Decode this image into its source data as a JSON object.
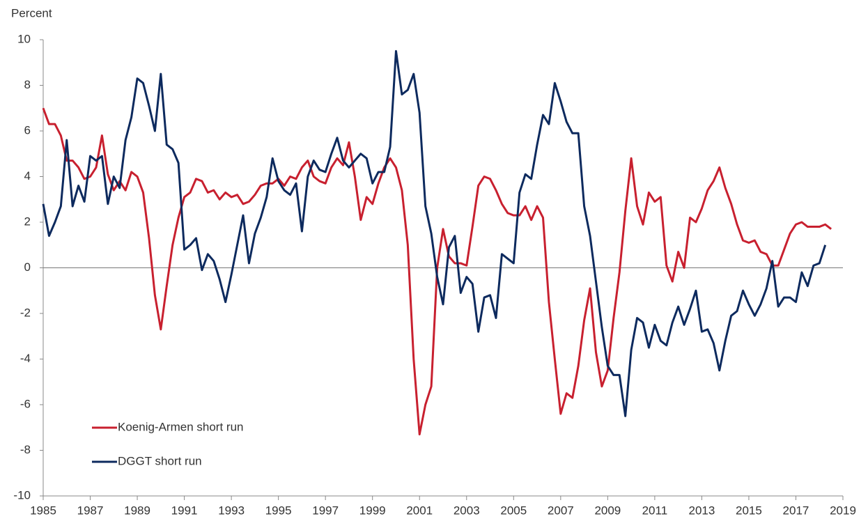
{
  "chart_data": {
    "type": "line",
    "y_label": "Percent",
    "x": [
      1985,
      1985.25,
      1985.5,
      1985.75,
      1986,
      1986.25,
      1986.5,
      1986.75,
      1987,
      1987.25,
      1987.5,
      1987.75,
      1988,
      1988.25,
      1988.5,
      1988.75,
      1989,
      1989.25,
      1989.5,
      1989.75,
      1990,
      1990.25,
      1990.5,
      1990.75,
      1991,
      1991.25,
      1991.5,
      1991.75,
      1992,
      1992.25,
      1992.5,
      1992.75,
      1993,
      1993.25,
      1993.5,
      1993.75,
      1994,
      1994.25,
      1994.5,
      1994.75,
      1995,
      1995.25,
      1995.5,
      1995.75,
      1996,
      1996.25,
      1996.5,
      1996.75,
      1997,
      1997.25,
      1997.5,
      1997.75,
      1998,
      1998.25,
      1998.5,
      1998.75,
      1999,
      1999.25,
      1999.5,
      1999.75,
      2000,
      2000.25,
      2000.5,
      2000.75,
      2001,
      2001.25,
      2001.5,
      2001.75,
      2002,
      2002.25,
      2002.5,
      2002.75,
      2003,
      2003.25,
      2003.5,
      2003.75,
      2004,
      2004.25,
      2004.5,
      2004.75,
      2005,
      2005.25,
      2005.5,
      2005.75,
      2006,
      2006.25,
      2006.5,
      2006.75,
      2007,
      2007.25,
      2007.5,
      2007.75,
      2008,
      2008.25,
      2008.5,
      2008.75,
      2009,
      2009.25,
      2009.5,
      2009.75,
      2010,
      2010.25,
      2010.5,
      2010.75,
      2011,
      2011.25,
      2011.5,
      2011.75,
      2012,
      2012.25,
      2012.5,
      2012.75,
      2013,
      2013.25,
      2013.5,
      2013.75,
      2014,
      2014.25,
      2014.5,
      2014.75,
      2015,
      2015.25,
      2015.5,
      2015.75,
      2016,
      2016.25,
      2016.5,
      2016.75,
      2017,
      2017.25,
      2017.5,
      2017.75,
      2018,
      2018.25,
      2018.5
    ],
    "series": [
      {
        "name": "Koenig-Armen short run",
        "color": "#c8202f",
        "values": [
          7.0,
          6.3,
          6.3,
          5.8,
          4.7,
          4.7,
          4.4,
          3.9,
          4.0,
          4.4,
          5.8,
          4.1,
          3.4,
          3.8,
          3.4,
          4.2,
          4.0,
          3.3,
          1.3,
          -1.2,
          -2.7,
          -0.8,
          1.0,
          2.2,
          3.1,
          3.3,
          3.9,
          3.8,
          3.3,
          3.4,
          3.0,
          3.3,
          3.1,
          3.2,
          2.8,
          2.9,
          3.2,
          3.6,
          3.7,
          3.7,
          3.9,
          3.6,
          4.0,
          3.9,
          4.4,
          4.7,
          4.0,
          3.8,
          3.7,
          4.4,
          4.8,
          4.5,
          5.5,
          4.0,
          2.1,
          3.1,
          2.8,
          3.7,
          4.4,
          4.8,
          4.4,
          3.4,
          1.0,
          -4.0,
          -7.3,
          -6.0,
          -5.2,
          0.0,
          1.7,
          0.5,
          0.2,
          0.2,
          0.1,
          1.8,
          3.6,
          4.0,
          3.9,
          3.4,
          2.8,
          2.4,
          2.3,
          2.3,
          2.7,
          2.1,
          2.7,
          2.2,
          -1.5,
          -4.0,
          -6.4,
          -5.5,
          -5.7,
          -4.3,
          -2.3,
          -0.9,
          -3.7,
          -5.2,
          -4.5,
          -2.2,
          -0.2,
          2.5,
          4.8,
          2.7,
          1.9,
          3.3,
          2.9,
          3.1,
          0.1,
          -0.6,
          0.7,
          0.0,
          2.2,
          2.0,
          2.6,
          3.4,
          3.8,
          4.4,
          3.5,
          2.8,
          1.9,
          1.2,
          1.1,
          1.2,
          0.7,
          0.6,
          0.1,
          0.1,
          0.8,
          1.5,
          1.9,
          2.0,
          1.8,
          1.8,
          1.8,
          1.9,
          1.7
        ]
      },
      {
        "name": "DGGT short run",
        "color": "#0d2a5e",
        "values": [
          2.8,
          1.4,
          2.0,
          2.7,
          5.6,
          2.7,
          3.6,
          2.9,
          4.9,
          4.7,
          4.9,
          2.8,
          4.0,
          3.5,
          5.6,
          6.6,
          8.3,
          8.1,
          7.1,
          6.0,
          8.5,
          5.4,
          5.2,
          4.6,
          0.8,
          1.0,
          1.3,
          -0.1,
          0.6,
          0.3,
          -0.5,
          -1.5,
          -0.3,
          1.0,
          2.3,
          0.2,
          1.5,
          2.2,
          3.1,
          4.8,
          3.8,
          3.4,
          3.2,
          3.7,
          1.6,
          4.0,
          4.7,
          4.3,
          4.2,
          5.0,
          5.7,
          4.7,
          4.4,
          4.7,
          5.0,
          4.8,
          3.7,
          4.2,
          4.2,
          5.3,
          9.5,
          7.6,
          7.8,
          8.5,
          6.8,
          2.7,
          1.5,
          -0.4,
          -1.6,
          0.9,
          1.4,
          -1.1,
          -0.4,
          -0.7,
          -2.8,
          -1.3,
          -1.2,
          -2.2,
          0.6,
          0.4,
          0.2,
          3.3,
          4.1,
          3.9,
          5.4,
          6.7,
          6.3,
          8.1,
          7.3,
          6.4,
          5.9,
          5.9,
          2.7,
          1.4,
          -0.6,
          -2.6,
          -4.3,
          -4.7,
          -4.7,
          -6.5,
          -3.6,
          -2.2,
          -2.4,
          -3.5,
          -2.5,
          -3.2,
          -3.4,
          -2.4,
          -1.7,
          -2.5,
          -1.8,
          -1.0,
          -2.8,
          -2.7,
          -3.3,
          -4.5,
          -3.2,
          -2.1,
          -1.9,
          -1.0,
          -1.6,
          -2.1,
          -1.6,
          -0.9,
          0.3,
          -1.7,
          -1.3,
          -1.3,
          -1.5,
          -0.2,
          -0.8,
          0.1,
          0.2,
          1.0,
          null
        ]
      }
    ],
    "xlim": [
      1985,
      2019
    ],
    "xticks": [
      1985,
      1987,
      1989,
      1991,
      1993,
      1995,
      1997,
      1999,
      2001,
      2003,
      2005,
      2007,
      2009,
      2011,
      2013,
      2015,
      2017,
      2019
    ],
    "ylim": [
      -10,
      10
    ],
    "yticks": [
      -10,
      -8,
      -6,
      -4,
      -2,
      0,
      2,
      4,
      6,
      8,
      10
    ],
    "grid": false,
    "legend": "lower left"
  }
}
